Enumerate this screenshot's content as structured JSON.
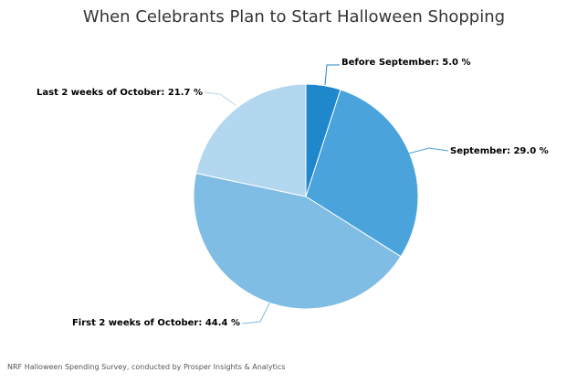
{
  "chart_data": {
    "type": "pie",
    "title": "When Celebrants Plan to Start Halloween Shopping",
    "slices": [
      {
        "label": "Before September",
        "value": 5.0,
        "display": "Before September: 5.0 %",
        "color": "#1f87cc"
      },
      {
        "label": "September",
        "value": 29.0,
        "display": "September: 29.0 %",
        "color": "#4aa3da"
      },
      {
        "label": "First 2 weeks of October",
        "value": 44.4,
        "display": "First 2 weeks of October: 44.4 %",
        "color": "#7fbde4"
      },
      {
        "label": "Last 2 weeks of October",
        "value": 21.7,
        "display": "Last 2 weeks of October: 21.7 %",
        "color": "#b3d7ee"
      }
    ],
    "legend": "none"
  },
  "source": "NRF Halloween Spending Survey, conducted by Prosper Insights & Analytics"
}
